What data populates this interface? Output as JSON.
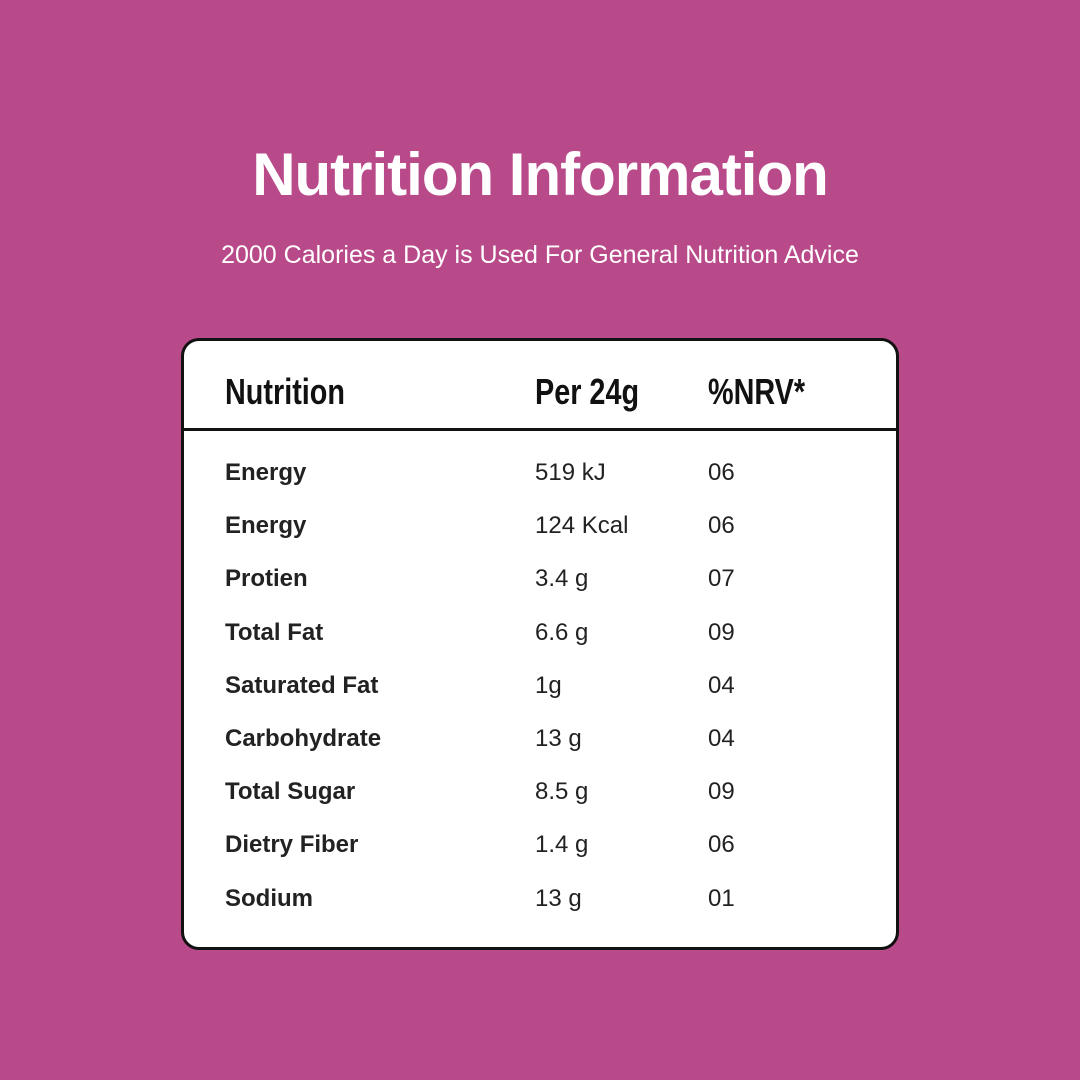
{
  "header": {
    "title": "Nutrition Information",
    "subtitle": "2000 Calories a Day is Used For General Nutrition Advice"
  },
  "table": {
    "columns": [
      "Nutrition",
      "Per 24g",
      "%NRV*"
    ],
    "rows": [
      [
        "Energy",
        "519 kJ",
        "06"
      ],
      [
        "Energy",
        "124 Kcal",
        "06"
      ],
      [
        "Protien",
        "3.4 g",
        "07"
      ],
      [
        "Total Fat",
        "6.6 g",
        "09"
      ],
      [
        "Saturated Fat",
        "1g",
        "04"
      ],
      [
        "Carbohydrate",
        "13 g",
        "04"
      ],
      [
        "Total Sugar",
        "8.5 g",
        "09"
      ],
      [
        "Dietry Fiber",
        "1.4 g",
        "06"
      ],
      [
        "Sodium",
        "13 g",
        "01"
      ]
    ]
  }
}
